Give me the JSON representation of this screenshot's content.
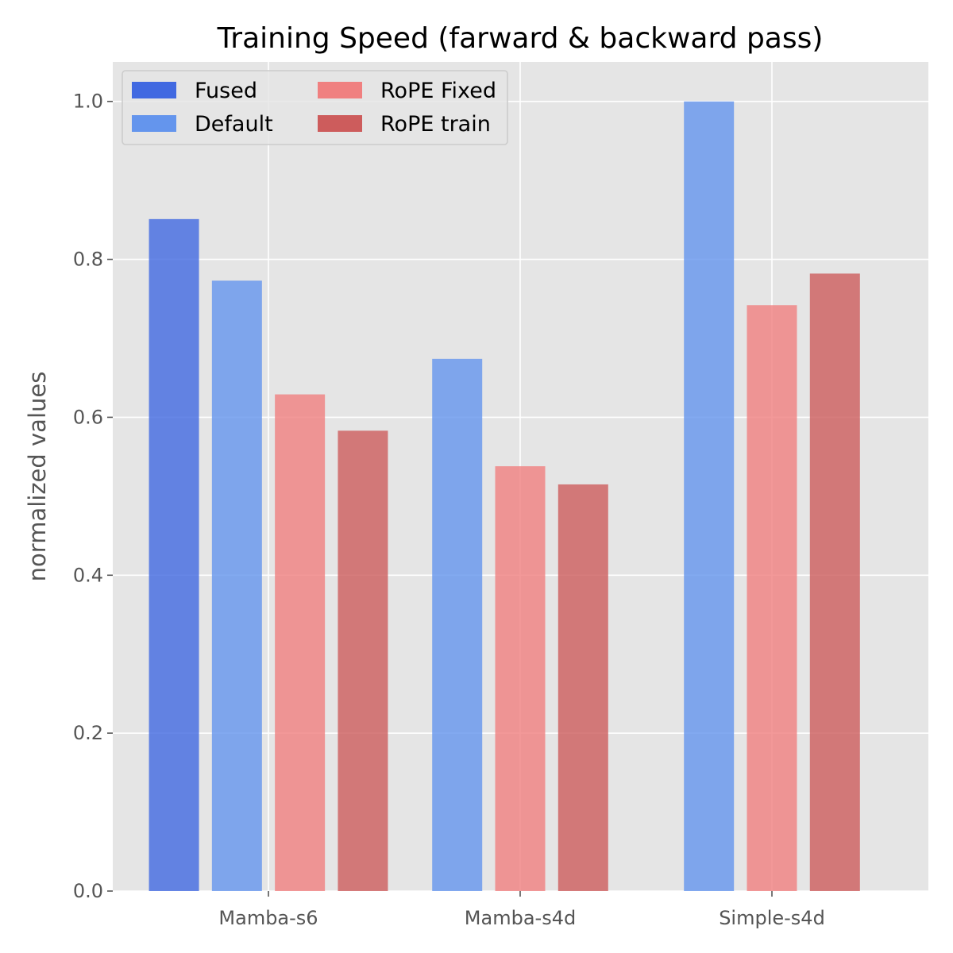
{
  "chart_data": {
    "type": "bar",
    "title": "Training Speed (farward & backward pass)",
    "xlabel": "",
    "ylabel": "normalized values",
    "categories": [
      "Mamba-s6",
      "Mamba-s4d",
      "Simple-s4d"
    ],
    "ylim": [
      0,
      1.05
    ],
    "yticks": [
      "0.0",
      "0.2",
      "0.4",
      "0.6",
      "0.8",
      "1.0"
    ],
    "grid": true,
    "legend_position": "top-left",
    "legend_columns": 2,
    "background": "#e5e5e5",
    "series": [
      {
        "name": "Fused",
        "color": "#4169e1",
        "values": [
          0.851,
          null,
          null
        ]
      },
      {
        "name": "Default",
        "color": "#6495ed",
        "values": [
          0.773,
          0.674,
          1.0
        ]
      },
      {
        "name": "RoPE Fixed",
        "color": "#f08080",
        "values": [
          0.629,
          0.538,
          0.742
        ]
      },
      {
        "name": "RoPE train",
        "color": "#cd5c5c",
        "values": [
          0.583,
          0.515,
          0.782
        ]
      }
    ]
  }
}
